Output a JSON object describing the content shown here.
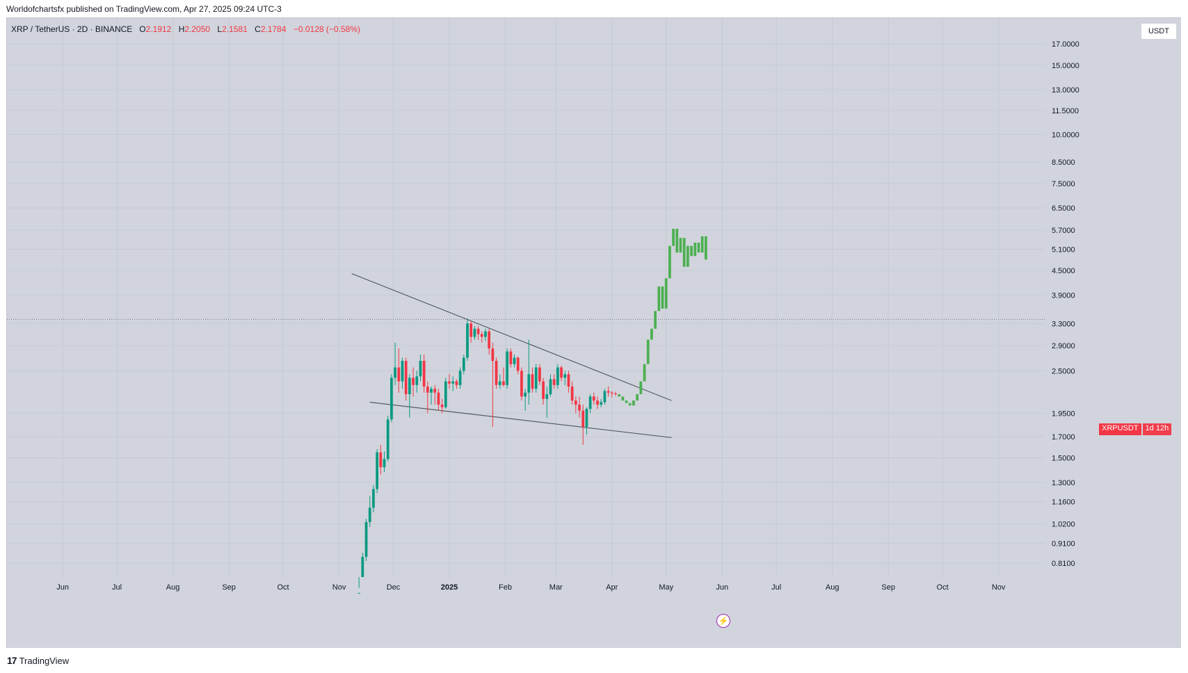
{
  "caption": "Worldofchartsfx published on TradingView.com, Apr 27, 2025 09:24 UTC-3",
  "brand": "TradingView",
  "brand_icon": "tv-logo-icon",
  "legend": {
    "symbol": "XRP / TetherUS · 2D · BINANCE",
    "o_label": "O",
    "o": "2.1912",
    "h_label": "H",
    "h": "2.2050",
    "l_label": "L",
    "l": "2.1581",
    "c_label": "C",
    "c": "2.1784",
    "change": "−0.0128 (−0.58%)"
  },
  "unit_button": "USDT",
  "last_price_tag": {
    "symbol": "XRPUSDT",
    "timer": "1d 12h"
  },
  "colors": {
    "background": "#d1d4dc",
    "up": "#089981",
    "down": "#f23645",
    "projection": "#4caf50",
    "trendline": "#555b66",
    "grid": "#c5c9d2"
  },
  "chart_data": {
    "type": "candlestick",
    "title": "XRP / TetherUS · 2D · BINANCE",
    "scale": "log",
    "ylim": [
      0.74,
      17.5
    ],
    "y_ticks": [
      "0.8100",
      "0.9100",
      "1.0200",
      "1.1600",
      "1.3000",
      "1.5000",
      "1.7000",
      "1.9500",
      "2.5000",
      "2.9000",
      "3.3000",
      "3.9000",
      "4.5000",
      "5.1000",
      "5.7000",
      "6.5000",
      "7.5000",
      "8.5000",
      "10.0000",
      "11.5000",
      "13.0000",
      "15.0000",
      "17.0000"
    ],
    "x_ticks": [
      "Jun",
      "Jul",
      "Aug",
      "Sep",
      "Oct",
      "Nov",
      "Dec",
      "2025",
      "Feb",
      "Mar",
      "Apr",
      "May",
      "Jun",
      "Jul",
      "Aug",
      "Sep",
      "Oct",
      "Nov"
    ],
    "x_range_months": [
      "2024-05-15",
      "2025-11-15"
    ],
    "start_date": "2024-11-12",
    "days_per_bar": 2,
    "reference_line": 3.38,
    "candles": [
      [
        0.62,
        0.7,
        0.6,
        0.68
      ],
      [
        0.68,
        0.86,
        0.67,
        0.84
      ],
      [
        0.84,
        1.05,
        0.82,
        1.03
      ],
      [
        1.03,
        1.2,
        1.0,
        1.12
      ],
      [
        1.12,
        1.28,
        1.09,
        1.25
      ],
      [
        1.25,
        1.58,
        1.22,
        1.55
      ],
      [
        1.55,
        1.62,
        1.36,
        1.42
      ],
      [
        1.42,
        1.56,
        1.38,
        1.49
      ],
      [
        1.49,
        1.92,
        1.47,
        1.88
      ],
      [
        1.88,
        2.45,
        1.85,
        2.4
      ],
      [
        2.4,
        2.95,
        2.3,
        2.55
      ],
      [
        2.55,
        2.85,
        2.2,
        2.35
      ],
      [
        2.35,
        2.7,
        2.25,
        2.65
      ],
      [
        2.65,
        2.7,
        2.1,
        2.18
      ],
      [
        2.18,
        2.45,
        1.9,
        2.4
      ],
      [
        2.4,
        2.55,
        2.15,
        2.3
      ],
      [
        2.3,
        2.5,
        2.2,
        2.42
      ],
      [
        2.42,
        2.75,
        2.35,
        2.65
      ],
      [
        2.65,
        2.75,
        2.2,
        2.28
      ],
      [
        2.28,
        2.35,
        1.95,
        2.2
      ],
      [
        2.2,
        2.28,
        2.05,
        2.25
      ],
      [
        2.25,
        2.3,
        2.05,
        2.2
      ],
      [
        2.2,
        2.25,
        1.98,
        2.05
      ],
      [
        2.05,
        2.12,
        1.95,
        2.02
      ],
      [
        2.02,
        2.4,
        2.0,
        2.35
      ],
      [
        2.35,
        2.45,
        2.25,
        2.32
      ],
      [
        2.32,
        2.42,
        2.22,
        2.35
      ],
      [
        2.35,
        2.38,
        2.25,
        2.3
      ],
      [
        2.3,
        2.55,
        2.25,
        2.5
      ],
      [
        2.5,
        2.75,
        2.45,
        2.7
      ],
      [
        2.7,
        3.4,
        2.65,
        3.3
      ],
      [
        3.3,
        3.35,
        2.95,
        3.05
      ],
      [
        3.05,
        3.25,
        3.0,
        3.2
      ],
      [
        3.2,
        3.25,
        3.0,
        3.1
      ],
      [
        3.1,
        3.15,
        2.95,
        3.05
      ],
      [
        3.05,
        3.2,
        2.98,
        3.15
      ],
      [
        3.15,
        3.2,
        2.75,
        2.85
      ],
      [
        2.85,
        2.95,
        1.8,
        2.65
      ],
      [
        2.65,
        2.7,
        2.25,
        2.3
      ],
      [
        2.3,
        2.45,
        2.25,
        2.35
      ],
      [
        2.35,
        2.55,
        2.28,
        2.3
      ],
      [
        2.3,
        2.85,
        2.25,
        2.8
      ],
      [
        2.8,
        2.85,
        2.55,
        2.6
      ],
      [
        2.6,
        2.75,
        2.55,
        2.7
      ],
      [
        2.7,
        2.72,
        2.45,
        2.5
      ],
      [
        2.5,
        2.55,
        2.1,
        2.15
      ],
      [
        2.15,
        2.25,
        1.98,
        2.2
      ],
      [
        2.2,
        3.0,
        2.05,
        2.45
      ],
      [
        2.45,
        2.55,
        2.2,
        2.25
      ],
      [
        2.25,
        2.6,
        2.2,
        2.55
      ],
      [
        2.55,
        2.6,
        2.3,
        2.35
      ],
      [
        2.35,
        2.4,
        2.05,
        2.12
      ],
      [
        2.12,
        2.28,
        1.9,
        2.18
      ],
      [
        2.18,
        2.45,
        2.15,
        2.38
      ],
      [
        2.38,
        2.45,
        2.25,
        2.3
      ],
      [
        2.3,
        2.6,
        2.25,
        2.55
      ],
      [
        2.55,
        2.58,
        2.35,
        2.4
      ],
      [
        2.4,
        2.5,
        2.3,
        2.45
      ],
      [
        2.45,
        2.5,
        2.2,
        2.28
      ],
      [
        2.28,
        2.35,
        2.05,
        2.1
      ],
      [
        2.1,
        2.15,
        1.95,
        2.05
      ],
      [
        2.05,
        2.15,
        1.9,
        1.98
      ],
      [
        1.98,
        2.05,
        1.62,
        1.8
      ],
      [
        1.8,
        2.02,
        1.72,
        2.0
      ],
      [
        2.0,
        2.18,
        1.95,
        2.15
      ],
      [
        2.15,
        2.2,
        2.05,
        2.1
      ],
      [
        2.1,
        2.15,
        2.0,
        2.05
      ],
      [
        2.05,
        2.12,
        2.02,
        2.08
      ],
      [
        2.08,
        2.25,
        2.05,
        2.22
      ],
      [
        2.22,
        2.28,
        2.15,
        2.2
      ],
      [
        2.2,
        2.22,
        2.14,
        2.19
      ],
      [
        2.19,
        2.21,
        2.16,
        2.18
      ]
    ],
    "projection": [
      [
        2.18,
        2.15
      ],
      [
        2.15,
        2.1
      ],
      [
        2.1,
        2.07
      ],
      [
        2.07,
        2.04
      ],
      [
        2.04,
        2.1
      ],
      [
        2.1,
        2.18
      ],
      [
        2.18,
        2.35
      ],
      [
        2.35,
        2.6
      ],
      [
        2.6,
        3.0
      ],
      [
        3.0,
        3.2
      ],
      [
        3.2,
        3.55
      ],
      [
        3.55,
        4.1
      ],
      [
        4.1,
        3.6
      ],
      [
        3.6,
        4.3
      ],
      [
        4.3,
        5.2
      ],
      [
        5.2,
        5.75
      ],
      [
        5.75,
        5.0
      ],
      [
        5.0,
        5.45
      ],
      [
        5.45,
        4.6
      ],
      [
        4.6,
        5.2
      ],
      [
        5.2,
        4.9
      ],
      [
        4.9,
        5.3
      ],
      [
        5.3,
        5.0
      ],
      [
        5.0,
        5.5
      ],
      [
        5.5,
        4.8
      ]
    ],
    "trendlines": [
      {
        "name": "upper",
        "from": [
          "2024-11-08",
          4.42
        ],
        "to": [
          "2025-05-04",
          2.1
        ]
      },
      {
        "name": "lower",
        "from": [
          "2024-11-18",
          2.08
        ],
        "to": [
          "2025-05-04",
          1.69
        ]
      }
    ]
  }
}
